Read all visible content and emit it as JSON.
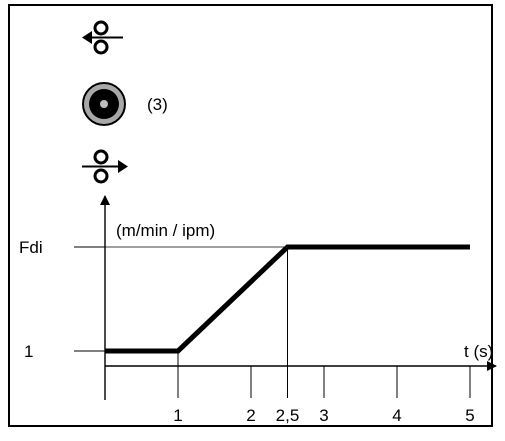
{
  "icons": {
    "wire_retract": "wire-retract-icon",
    "torch_button": "torch-button-icon",
    "wire_feed": "wire-feed-icon"
  },
  "button_label": "(3)",
  "chart_data": {
    "type": "line",
    "ylabel": "(m/min / ipm)",
    "xlabel": "t (s)",
    "y_ticks": [
      "Fdi",
      "1"
    ],
    "x_ticks": [
      "1",
      "2",
      "2,5",
      "3",
      "4",
      "5"
    ],
    "x_tick_values": [
      1,
      2,
      2.5,
      3,
      4,
      5
    ],
    "series": [
      {
        "x": [
          0,
          1,
          2.5,
          5
        ],
        "y": [
          "1",
          "1",
          "Fdi",
          "Fdi"
        ]
      }
    ]
  }
}
